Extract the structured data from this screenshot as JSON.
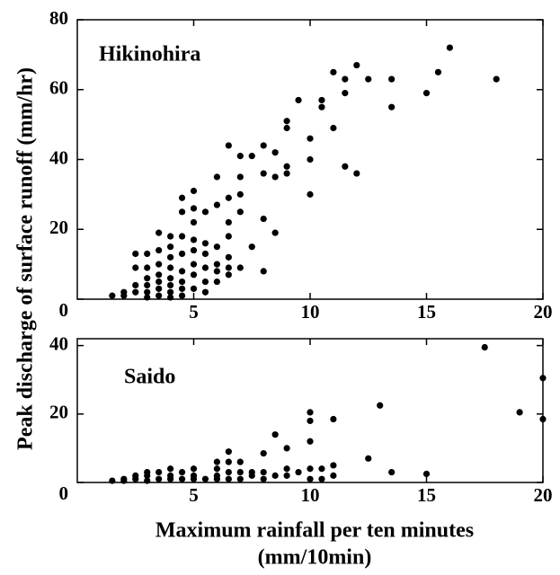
{
  "chart_data": [
    {
      "type": "scatter",
      "title": "Hikinohira",
      "ylabel": "Peak discharge of surface runoff (mm/hr)",
      "color": "#000000",
      "xlim": [
        0,
        20
      ],
      "xticks": [
        5,
        10,
        15,
        20
      ],
      "ylim": [
        0,
        80
      ],
      "yticks": [
        0,
        20,
        40,
        60,
        80
      ],
      "x": [
        1.5,
        2,
        2,
        2.5,
        2.5,
        2.5,
        2.5,
        3,
        3,
        3,
        3,
        3,
        3,
        3.5,
        3.5,
        3.5,
        3.5,
        3.5,
        3.5,
        3.5,
        4,
        4,
        4,
        4,
        4,
        4,
        4,
        4,
        4.5,
        4.5,
        4.5,
        4.5,
        4.5,
        4.5,
        4.5,
        4.5,
        5,
        5,
        5,
        5,
        5,
        5,
        5,
        5,
        5.5,
        5.5,
        5.5,
        5.5,
        5.5,
        5.5,
        6,
        6,
        6,
        6,
        6,
        6,
        6.5,
        6.5,
        6.5,
        6.5,
        6.5,
        6.5,
        6.5,
        7,
        7,
        7,
        7,
        7,
        7.5,
        7.5,
        8,
        8,
        8,
        8,
        8.5,
        8.5,
        8.5,
        9,
        9,
        9,
        9,
        9.5,
        10,
        10,
        10,
        10.5,
        10.5,
        11,
        11,
        11.5,
        11.5,
        11.5,
        12,
        12,
        12.5,
        13.5,
        13.5,
        15,
        15.5,
        16,
        18
      ],
      "values": [
        1,
        1,
        2,
        2,
        4,
        9,
        13,
        0.5,
        2,
        4,
        6,
        9,
        13,
        1,
        3,
        5,
        7,
        10,
        14,
        19,
        0.5,
        2,
        4,
        6,
        9,
        12,
        15,
        18,
        1,
        3,
        5,
        8,
        13,
        18,
        25,
        29,
        3,
        7,
        10,
        14,
        17,
        22,
        26,
        31,
        2,
        5,
        9,
        13,
        16,
        25,
        5,
        8,
        10,
        15,
        27,
        35,
        7,
        9,
        12,
        18,
        22,
        29,
        44,
        9,
        25,
        30,
        35,
        41,
        15,
        41,
        8,
        23,
        36,
        44,
        19,
        35,
        42,
        36,
        38,
        49,
        51,
        57,
        30,
        40,
        46,
        55,
        57,
        49,
        65,
        38,
        59,
        63,
        36,
        67,
        63,
        55,
        63,
        59,
        65,
        72,
        63
      ]
    },
    {
      "type": "scatter",
      "title": "Saido",
      "xlabel": [
        "Maximum rainfall per ten minutes",
        "(mm/10min)"
      ],
      "color": "#000000",
      "xlim": [
        0,
        20
      ],
      "xticks": [
        5,
        10,
        15,
        20
      ],
      "ylim": [
        0,
        42
      ],
      "yticks": [
        0,
        20,
        40
      ],
      "x": [
        1.5,
        2,
        2,
        2.5,
        2.5,
        3,
        3,
        3,
        3.5,
        3.5,
        4,
        4,
        4,
        4.5,
        4.5,
        5,
        5,
        5,
        5.5,
        6,
        6,
        6,
        6,
        6.5,
        6.5,
        6.5,
        6.5,
        7,
        7,
        7,
        7.5,
        7.5,
        8,
        8,
        8,
        8.5,
        8.5,
        9,
        9,
        9,
        9.5,
        10,
        10,
        10,
        10,
        10,
        10.5,
        10.5,
        11,
        11,
        11,
        12.5,
        13,
        13.5,
        15,
        17.5,
        19,
        20,
        20
      ],
      "values": [
        0.5,
        0.5,
        1,
        1,
        2,
        0.5,
        2,
        3,
        1,
        3,
        1,
        2,
        4,
        1,
        3,
        1,
        2,
        4,
        1,
        1,
        2,
        4,
        6,
        1,
        3,
        6,
        9,
        1,
        3,
        6,
        2,
        3,
        1,
        3,
        8.5,
        2,
        14,
        2,
        4,
        10,
        3,
        1,
        4,
        12,
        18,
        20.5,
        1,
        4,
        2,
        5,
        18.5,
        7,
        22.5,
        3,
        2.5,
        39.5,
        20.5,
        18.5,
        30.5
      ]
    }
  ]
}
